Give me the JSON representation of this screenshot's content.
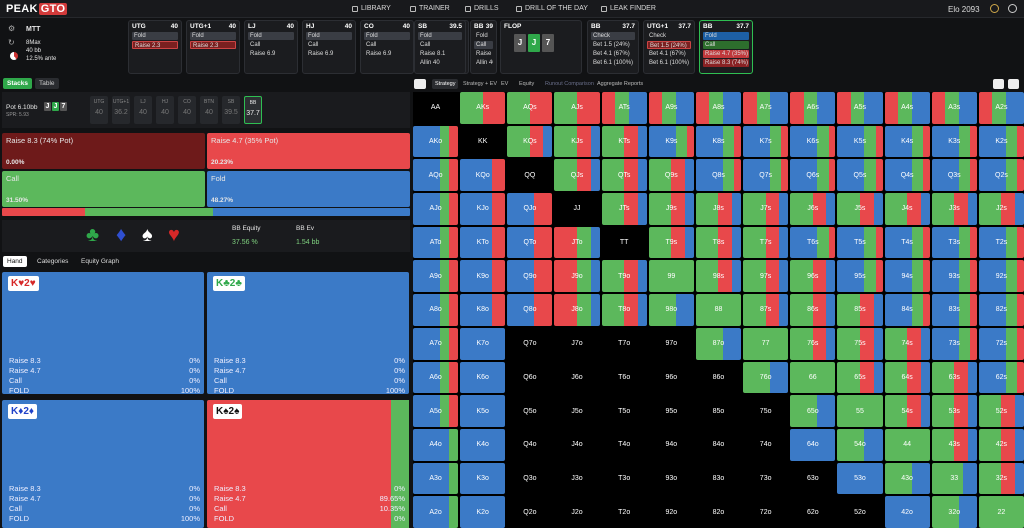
{
  "brand": {
    "peak": "PEAK",
    "gto": "GTO"
  },
  "nav": {
    "library": "LIBRARY",
    "trainer": "TRAINER",
    "drills": "DRILLS",
    "drill_day": "DRILL OF THE DAY",
    "leak": "LEAK FINDER"
  },
  "elo": "Elo 2093",
  "game": {
    "type": "MTT",
    "max": "8Max",
    "stack": "40 bb",
    "ante": "12.5% ante"
  },
  "positions": [
    {
      "name": "UTG",
      "stack": "40",
      "actions": [
        "Fold",
        "Raise 2.3"
      ],
      "sel": 1
    },
    {
      "name": "UTG+1",
      "stack": "40",
      "actions": [
        "Fold",
        "Raise 2.3"
      ],
      "sel": 1
    },
    {
      "name": "LJ",
      "stack": "40",
      "actions": [
        "Fold",
        "Call",
        "Raise 6.9"
      ],
      "sel": 0
    },
    {
      "name": "HJ",
      "stack": "40",
      "actions": [
        "Fold",
        "Call",
        "Raise 6.9"
      ],
      "sel": 0
    },
    {
      "name": "CO",
      "stack": "40",
      "actions": [
        "Fold",
        "Call",
        "Raise 6.9"
      ],
      "sel": 0
    },
    {
      "name": "BTN",
      "stack": "40",
      "actions": [
        "Fold",
        "Call",
        "Raise 6.9"
      ],
      "sel": 0
    },
    {
      "name": "SB",
      "stack": "39.5",
      "actions": [
        "Fold",
        "Call",
        "Raise 8.1",
        "Allin 40"
      ],
      "sel": 0
    },
    {
      "name": "BB",
      "stack": "39",
      "actions": [
        "Fold",
        "Call",
        "Raise 8.1",
        "Allin 40"
      ],
      "sel": 1
    }
  ],
  "flop": {
    "label": "FLOP",
    "cards": [
      "J",
      "J",
      "7"
    ]
  },
  "bb_card": {
    "name": "BB",
    "stack": "37.7",
    "actions": [
      "Check",
      "Bet 1.5 (24%)",
      "Bet 4.1 (67%)",
      "Bet 6.1 (100%)"
    ]
  },
  "utg1_card": {
    "name": "UTG+1",
    "stack": "37.7",
    "actions": [
      "Check",
      "Bet 1.5 (24%)",
      "Bet 4.1 (67%)",
      "Bet 6.1 (100%)"
    ]
  },
  "bb_active": {
    "name": "BB",
    "stack": "37.7",
    "actions": [
      "Fold",
      "Call",
      "Raise 4.7 (35%)",
      "Raise 8.3 (74%)"
    ]
  },
  "left_tabs": {
    "stacks": "Stacks",
    "table": "Table"
  },
  "pot": {
    "label": "Pot",
    "value": "6.10bb",
    "spr": "SPR: 5.93"
  },
  "seats": [
    {
      "n": "UTG",
      "v": "40"
    },
    {
      "n": "UTG+1",
      "v": "36.2"
    },
    {
      "n": "LJ",
      "v": "40"
    },
    {
      "n": "HJ",
      "v": "40"
    },
    {
      "n": "CO",
      "v": "40"
    },
    {
      "n": "BTN",
      "v": "40"
    },
    {
      "n": "SB",
      "v": "39.5"
    },
    {
      "n": "BB",
      "v": "37.7"
    }
  ],
  "actions": [
    {
      "label": "Raise 8.3 (74% Pot)",
      "pct": "0.00%"
    },
    {
      "label": "Raise 4.7 (35% Pot)",
      "pct": "20.23%"
    },
    {
      "label": "Call",
      "pct": "31.50%"
    },
    {
      "label": "Fold",
      "pct": "48.27%"
    }
  ],
  "freq": [
    0.2023,
    0.315,
    0.4827
  ],
  "equity": {
    "label": "BB Equity",
    "value": "37.56 %",
    "ev_label": "BB Ev",
    "ev_value": "1.54 bb"
  },
  "hand_tabs": {
    "hand": "Hand",
    "categories": "Categories",
    "equity": "Equity Graph"
  },
  "hands": [
    {
      "rank": "K",
      "s1": "♥",
      "s2": "♥",
      "c": "#d62828",
      "rows": [
        [
          "Raise 8.3",
          "0%"
        ],
        [
          "Raise 4.7",
          "0%"
        ],
        [
          "Call",
          "0%"
        ],
        [
          "FOLD",
          "100%"
        ]
      ],
      "color": "#3b7ac7"
    },
    {
      "rank": "K",
      "s1": "♣",
      "s2": "♣",
      "c": "#2fa84a",
      "rows": [
        [
          "Raise 8.3",
          "0%"
        ],
        [
          "Raise 4.7",
          "0%"
        ],
        [
          "Call",
          "0%"
        ],
        [
          "FOLD",
          "100%"
        ]
      ],
      "color": "#3b7ac7"
    },
    {
      "rank": "K",
      "s1": "♦",
      "s2": "♦",
      "c": "#2042c8",
      "rows": [
        [
          "Raise 8.3",
          "0%"
        ],
        [
          "Raise 4.7",
          "0%"
        ],
        [
          "Call",
          "0%"
        ],
        [
          "FOLD",
          "100%"
        ]
      ],
      "color": "#3b7ac7"
    },
    {
      "rank": "K",
      "s1": "♠",
      "s2": "♠",
      "c": "#111",
      "rows": [
        [
          "Raise 8.3",
          "0%"
        ],
        [
          "Raise 4.7",
          "89.65%"
        ],
        [
          "Call",
          "10.35%"
        ],
        [
          "FOLD",
          "0%"
        ]
      ],
      "color": "#e8484b"
    }
  ],
  "grid_tabs": [
    "Strategy",
    "Strategy + EV",
    "EV",
    "Equity",
    "Runout Comparison",
    "Aggregate Reports"
  ],
  "grid": [
    [
      "AA",
      "AKs",
      "AQs",
      "AJs",
      "ATs",
      "A9s",
      "A8s",
      "A7s",
      "A6s",
      "A5s",
      "A4s",
      "A3s",
      "A2s"
    ],
    [
      "AKo",
      "KK",
      "KQs",
      "KJs",
      "KTs",
      "K9s",
      "K8s",
      "K7s",
      "K6s",
      "K5s",
      "K4s",
      "K3s",
      "K2s"
    ],
    [
      "AQo",
      "KQo",
      "QQ",
      "QJs",
      "QTs",
      "Q9s",
      "Q8s",
      "Q7s",
      "Q6s",
      "Q5s",
      "Q4s",
      "Q3s",
      "Q2s"
    ],
    [
      "AJo",
      "KJo",
      "QJo",
      "JJ",
      "JTs",
      "J9s",
      "J8s",
      "J7s",
      "J6s",
      "J5s",
      "J4s",
      "J3s",
      "J2s"
    ],
    [
      "ATo",
      "KTo",
      "QTo",
      "JTo",
      "TT",
      "T9s",
      "T8s",
      "T7s",
      "T6s",
      "T5s",
      "T4s",
      "T3s",
      "T2s"
    ],
    [
      "A9o",
      "K9o",
      "Q9o",
      "J9o",
      "T9o",
      "99",
      "98s",
      "97s",
      "96s",
      "95s",
      "94s",
      "93s",
      "92s"
    ],
    [
      "A8o",
      "K8o",
      "Q8o",
      "J8o",
      "T8o",
      "98o",
      "88",
      "87s",
      "86s",
      "85s",
      "84s",
      "83s",
      "82s"
    ],
    [
      "A7o",
      "K7o",
      "Q7o",
      "J7o",
      "T7o",
      "97o",
      "87o",
      "77",
      "76s",
      "75s",
      "74s",
      "73s",
      "72s"
    ],
    [
      "A6o",
      "K6o",
      "Q6o",
      "J6o",
      "T6o",
      "96o",
      "86o",
      "76o",
      "66",
      "65s",
      "64s",
      "63s",
      "62s"
    ],
    [
      "A5o",
      "K5o",
      "Q5o",
      "J5o",
      "T5o",
      "95o",
      "85o",
      "75o",
      "65o",
      "55",
      "54s",
      "53s",
      "52s"
    ],
    [
      "A4o",
      "K4o",
      "Q4o",
      "J4o",
      "T4o",
      "94o",
      "84o",
      "74o",
      "64o",
      "54o",
      "44",
      "43s",
      "42s"
    ],
    [
      "A3o",
      "K3o",
      "Q3o",
      "J3o",
      "T3o",
      "93o",
      "83o",
      "73o",
      "63o",
      "53o",
      "43o",
      "33",
      "32s"
    ],
    [
      "A2o",
      "K2o",
      "Q2o",
      "J2o",
      "T2o",
      "92o",
      "82o",
      "72o",
      "62o",
      "52o",
      "42o",
      "32o",
      "22"
    ]
  ],
  "colors": {
    "raise_big": "#7a1e1e",
    "raise": "#e8484b",
    "call": "#5cb85c",
    "fold": "#3b7ac7",
    "accent": "#2fbf52"
  }
}
